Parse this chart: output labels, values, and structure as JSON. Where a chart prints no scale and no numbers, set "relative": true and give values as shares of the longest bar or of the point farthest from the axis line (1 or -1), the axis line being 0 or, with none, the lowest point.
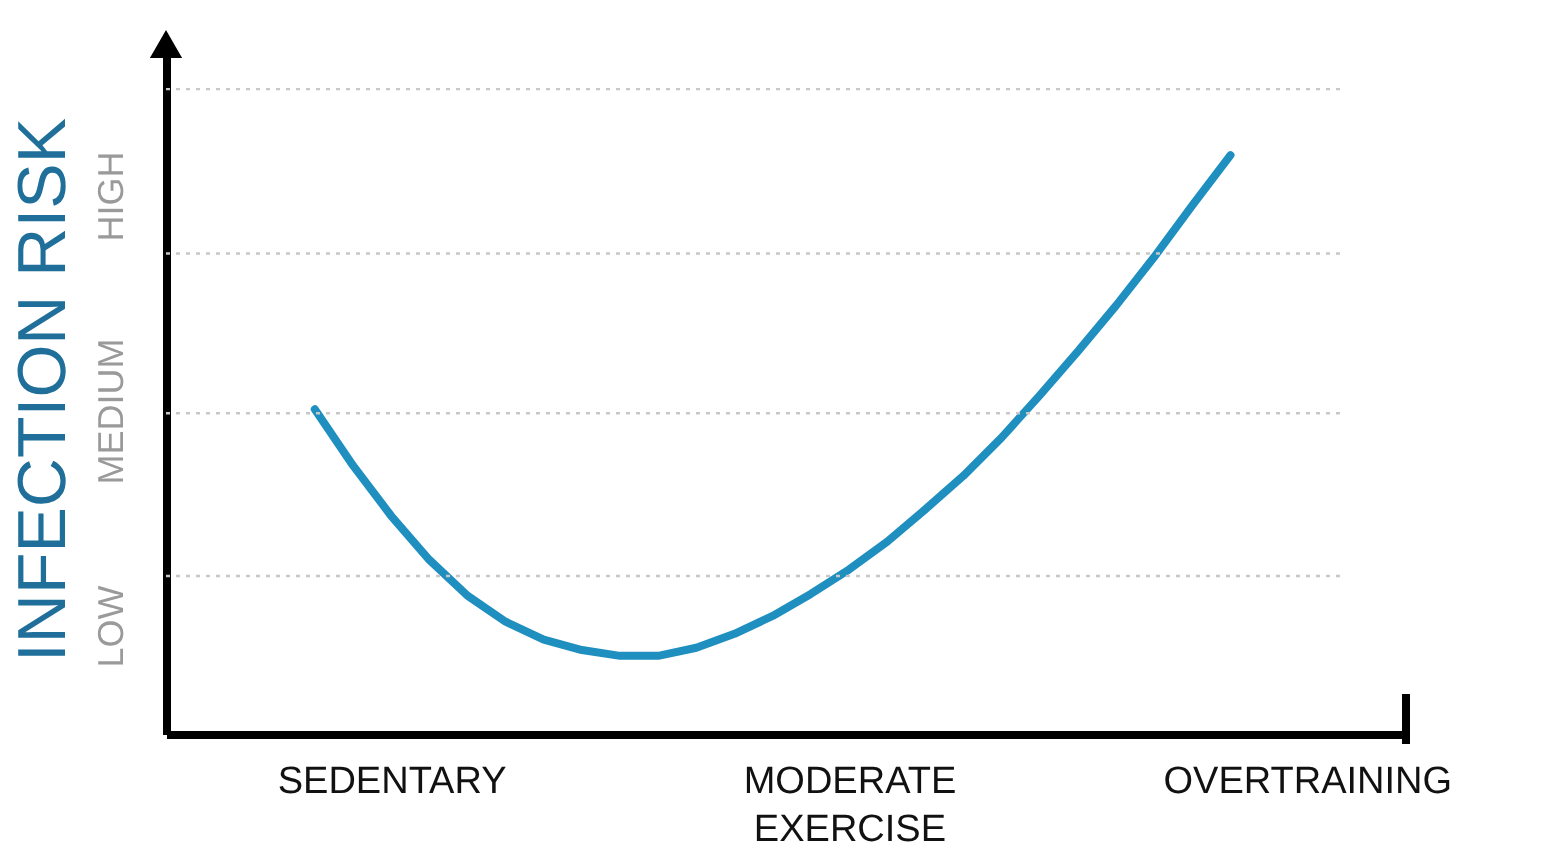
{
  "chart_data": {
    "type": "line",
    "relative": true,
    "ylabel": "INFECTION RISK",
    "categories": [
      null,
      null,
      "SEDENTARY",
      null,
      null,
      null,
      null,
      null,
      null,
      null,
      null,
      null,
      null,
      null,
      "MODERATE EXERCISE",
      null,
      null,
      null,
      null,
      null,
      null,
      null,
      null,
      null,
      null,
      null,
      "OVERTRAINING"
    ],
    "series": [
      {
        "color": "#1f8fc0",
        "values": [
          0.561,
          0.464,
          0.377,
          0.301,
          0.239,
          0.194,
          0.163,
          0.145,
          0.135,
          0.135,
          0.149,
          0.173,
          0.204,
          0.242,
          0.284,
          0.332,
          0.388,
          0.446,
          0.512,
          0.585,
          0.661,
          0.74,
          0.824,
          0.913,
          1.0,
          null,
          null
        ]
      }
    ],
    "annotations": [
      "LOW",
      "MEDIUM",
      "HIGH"
    ],
    "ref_lines": [
      {
        "axis": "y",
        "value": 0.273,
        "color": "#c8c8c8",
        "line_style": "dotted"
      },
      {
        "axis": "y",
        "value": 0.554,
        "color": "#c8c8c8",
        "line_style": "dotted"
      },
      {
        "axis": "y",
        "value": 0.83,
        "color": "#c8c8c8",
        "line_style": "dotted"
      },
      {
        "axis": "y",
        "value": 1.114,
        "color": "#c8c8c8",
        "line_style": "dotted"
      }
    ],
    "marker": "none",
    "line_style": "solid"
  }
}
